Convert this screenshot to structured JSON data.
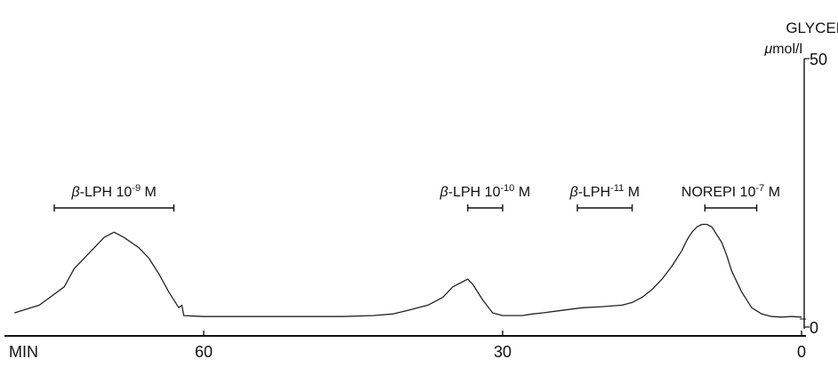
{
  "chart_data": {
    "type": "line",
    "y_axis": {
      "title_line1": "GLYCEROL",
      "unit_prefix": "μ",
      "unit_suffix": "mol/l",
      "ticks": [
        {
          "value": 50,
          "label": "50"
        },
        {
          "value": 0,
          "label": "0"
        }
      ],
      "ylim": [
        0,
        50
      ]
    },
    "x_axis": {
      "label": "MIN",
      "reversed": true,
      "xlim": [
        79,
        0
      ],
      "ticks": [
        {
          "value": 60,
          "label": "60"
        },
        {
          "value": 30,
          "label": "30"
        },
        {
          "value": 0,
          "label": "0"
        }
      ]
    },
    "annotations": [
      {
        "greek": "β",
        "base": "-LPH 10",
        "sup": "-9",
        "tail": " M",
        "start": 75,
        "end": 63
      },
      {
        "greek": "β",
        "base": "-LPH 10",
        "sup": "-10",
        "tail": " M",
        "start": 33.5,
        "end": 30
      },
      {
        "greek": "β",
        "base": "-LPH",
        "sup": "-11",
        "tail": " M",
        "start": 22.5,
        "end": 17
      },
      {
        "greek": "",
        "base": "NOREPI 10",
        "sup": "-7",
        "tail": " M",
        "start": 9.7,
        "end": 4.5
      }
    ],
    "series": [
      {
        "x": [
          79,
          76.5,
          74,
          73,
          71.5,
          70,
          69,
          68,
          66.5,
          65.5,
          64.5,
          63.5,
          62.5,
          62.2,
          62,
          61,
          60,
          57,
          53,
          49,
          46,
          43,
          41,
          39.5,
          37.5,
          36,
          35,
          34,
          33.5,
          33,
          32,
          31,
          30,
          29,
          28,
          27,
          26,
          24,
          22,
          20,
          18,
          17,
          16,
          15,
          14,
          13,
          12,
          11.5,
          11,
          10.5,
          10,
          9.5,
          9,
          8.5,
          8,
          7.5,
          7,
          6,
          5,
          4,
          3,
          2,
          1,
          0
        ],
        "y": [
          1,
          2.5,
          6,
          9.5,
          12.5,
          15.5,
          16.5,
          15.5,
          13.5,
          11.5,
          8.5,
          5,
          2,
          2.5,
          0.5,
          0.4,
          0.3,
          0.3,
          0.3,
          0.3,
          0.3,
          0.5,
          0.8,
          1.5,
          2.5,
          4,
          6,
          7,
          7.5,
          6.5,
          3.5,
          1,
          0.5,
          0.5,
          0.5,
          0.8,
          1,
          1.5,
          2,
          2.2,
          2.5,
          3,
          4,
          5.5,
          7.5,
          10,
          13,
          15,
          16.5,
          17.5,
          18,
          18,
          17.5,
          16,
          14.5,
          12,
          9,
          5,
          2,
          0.8,
          0.3,
          0.2,
          0.3,
          0.2
        ]
      }
    ]
  }
}
